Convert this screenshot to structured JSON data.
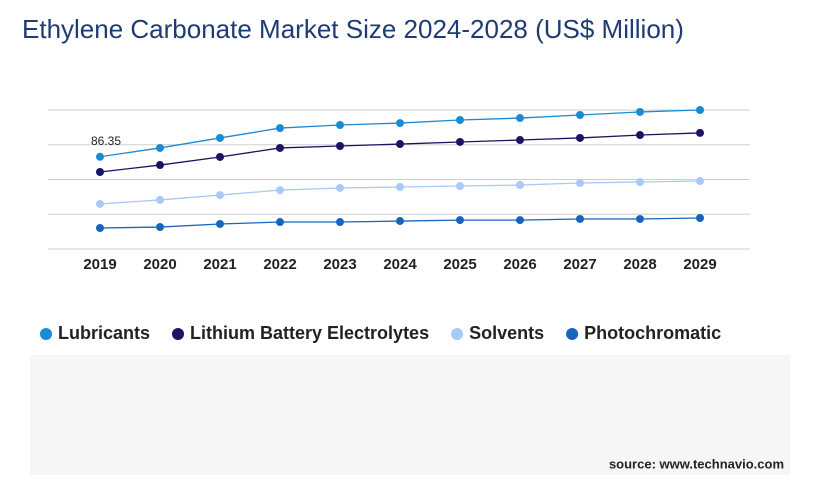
{
  "chart_data": {
    "type": "line",
    "title": "Ethylene Carbonate Market Size 2024-2028 (US$ Million)",
    "categories": [
      "2019",
      "2020",
      "2021",
      "2022",
      "2023",
      "2024",
      "2025",
      "2026",
      "2027",
      "2028",
      "2029"
    ],
    "series": [
      {
        "name": "Lubricants",
        "color": "#1a8ad4",
        "values": [
          86.35,
          92.7,
          99.9,
          107.0,
          109.2,
          110.6,
          112.8,
          114.2,
          116.4,
          118.6,
          120.0
        ],
        "value_labels": [
          "86.35",
          null,
          null,
          null,
          null,
          null,
          null,
          null,
          null,
          null,
          null
        ]
      },
      {
        "name": "Lithium Battery Electrolytes",
        "color": "#1b1464",
        "values": [
          75.4,
          80.4,
          86.2,
          92.7,
          94.1,
          95.5,
          97.0,
          98.4,
          99.9,
          102.0,
          103.5
        ]
      },
      {
        "name": "Solvents",
        "color": "#a9c9f7",
        "values": [
          52.4,
          55.3,
          58.8,
          62.4,
          63.9,
          64.6,
          65.3,
          66.0,
          67.5,
          68.2,
          68.9
        ]
      },
      {
        "name": "Photochromatic",
        "color": "#1565c0",
        "values": [
          35.1,
          35.8,
          38.0,
          39.4,
          39.4,
          40.1,
          40.8,
          40.8,
          41.6,
          41.6,
          42.3
        ]
      }
    ],
    "ylim": [
      20,
      120
    ],
    "yticks": [
      20,
      45,
      70,
      95,
      120
    ],
    "grid": true,
    "source": "source: www.technavio.com"
  }
}
